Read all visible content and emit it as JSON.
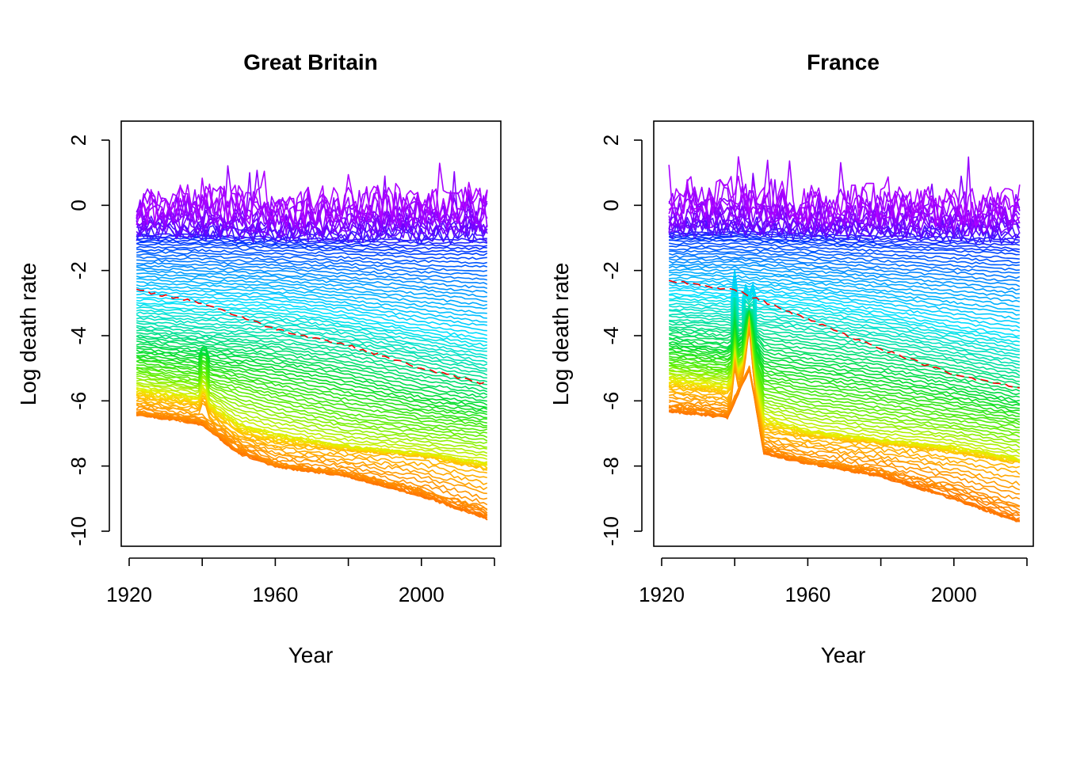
{
  "chart_data": [
    {
      "type": "line",
      "title": "Great Britain",
      "xlabel": "Year",
      "ylabel": "Log death rate",
      "xlim": [
        1920,
        2020
      ],
      "ylim": [
        -10,
        2
      ],
      "x_ticks": [
        "1920",
        "1960",
        "2000"
      ],
      "y_ticks": [
        "-10",
        "-8",
        "-6",
        "-4",
        "-2",
        "0",
        "2"
      ],
      "grid": false,
      "legend": "none",
      "x_range_data": [
        1922,
        2018
      ],
      "series_encoding": "one line per age (0 to ~110); colour runs red/orange (young ages) → yellow → green → cyan → blue → violet (oldest ages)",
      "series": [
        {
          "name": "",
          "age": 0,
          "color": "#ff0000",
          "x": [
            1922,
            1940,
            1960,
            1980,
            2000,
            2018
          ],
          "values": [
            -2.6,
            -3.0,
            -3.8,
            -4.3,
            -5.0,
            -5.5
          ]
        },
        {
          "name": "",
          "age": 5,
          "color": "#ff6a00",
          "x": [
            1922,
            1940,
            1950,
            1960,
            1980,
            2000,
            2018
          ],
          "values": [
            -6.4,
            -6.7,
            -7.6,
            -8.0,
            -8.3,
            -8.9,
            -9.6
          ]
        },
        {
          "name": "",
          "age": 12,
          "color": "#ff8c00",
          "x": [
            1922,
            1940,
            1950,
            1960,
            1980,
            2000,
            2018
          ],
          "values": [
            -6.3,
            -6.6,
            -7.4,
            -7.9,
            -8.2,
            -8.7,
            -9.3
          ]
        },
        {
          "name": "",
          "age": 20,
          "color": "#ffb000",
          "x": [
            1922,
            1940,
            1950,
            1960,
            1980,
            2000,
            2018
          ],
          "values": [
            -5.9,
            -6.2,
            -7.0,
            -7.3,
            -7.5,
            -7.7,
            -8.1
          ]
        },
        {
          "name": "",
          "age": 30,
          "color": "#ffe000",
          "x": [
            1922,
            1940,
            1950,
            1960,
            1980,
            2000,
            2018
          ],
          "values": [
            -5.6,
            -5.9,
            -6.7,
            -7.0,
            -7.4,
            -7.6,
            -7.9
          ]
        },
        {
          "name": "",
          "age": 40,
          "color": "#8cff00",
          "x": [
            1922,
            1940,
            1960,
            1980,
            2000,
            2018
          ],
          "values": [
            -5.0,
            -5.3,
            -5.9,
            -6.4,
            -6.7,
            -6.9
          ]
        },
        {
          "name": "",
          "age": 50,
          "color": "#00e020",
          "x": [
            1922,
            1940,
            1960,
            1980,
            2000,
            2018
          ],
          "values": [
            -4.4,
            -4.6,
            -4.9,
            -5.3,
            -5.8,
            -6.1
          ]
        },
        {
          "name": "",
          "age": 60,
          "color": "#00e8a0",
          "x": [
            1922,
            1940,
            1960,
            1980,
            2000,
            2018
          ],
          "values": [
            -3.7,
            -3.9,
            -4.0,
            -4.3,
            -4.7,
            -5.1
          ]
        },
        {
          "name": "",
          "age": 70,
          "color": "#00e8ff",
          "x": [
            1922,
            1940,
            1960,
            1980,
            2000,
            2018
          ],
          "values": [
            -2.9,
            -3.0,
            -3.1,
            -3.4,
            -3.8,
            -4.1
          ]
        },
        {
          "name": "",
          "age": 80,
          "color": "#0090ff",
          "x": [
            1922,
            1940,
            1960,
            1980,
            2000,
            2018
          ],
          "values": [
            -2.0,
            -2.1,
            -2.2,
            -2.4,
            -2.6,
            -2.8
          ]
        },
        {
          "name": "",
          "age": 90,
          "color": "#0030ff",
          "x": [
            1922,
            1940,
            1960,
            1980,
            2000,
            2018
          ],
          "values": [
            -1.2,
            -1.2,
            -1.3,
            -1.4,
            -1.5,
            -1.5
          ]
        },
        {
          "name": "",
          "age": 100,
          "color": "#8000ff",
          "x": [
            1922,
            1940,
            1960,
            1980,
            2000,
            2018
          ],
          "values": [
            -0.6,
            -0.6,
            -0.7,
            -0.7,
            -0.6,
            -0.6
          ]
        },
        {
          "name": "",
          "age": 108,
          "color": "#b000ff",
          "x": [
            1922,
            1940,
            1960,
            1980,
            2000,
            2018
          ],
          "values": [
            0.0,
            0.2,
            -0.1,
            0.1,
            0.0,
            0.1
          ]
        }
      ]
    },
    {
      "type": "line",
      "title": "France",
      "xlabel": "Year",
      "ylabel": "Log death rate",
      "xlim": [
        1920,
        2020
      ],
      "ylim": [
        -10,
        2
      ],
      "x_ticks": [
        "1920",
        "1960",
        "2000"
      ],
      "y_ticks": [
        "-10",
        "-8",
        "-6",
        "-4",
        "-2",
        "0",
        "2"
      ],
      "grid": false,
      "legend": "none",
      "x_range_data": [
        1922,
        2018
      ],
      "series_encoding": "one line per age (0 to ~110); colour runs red/orange (young ages) → yellow → green → cyan → blue → violet (oldest ages); war-year spike around 1940–1945",
      "series": [
        {
          "name": "",
          "age": 0,
          "color": "#ff0000",
          "x": [
            1922,
            1940,
            1960,
            1980,
            2000,
            2018
          ],
          "values": [
            -2.3,
            -2.6,
            -3.5,
            -4.4,
            -5.2,
            -5.6
          ]
        },
        {
          "name": "",
          "age": 5,
          "color": "#ff6a00",
          "x": [
            1922,
            1938,
            1944,
            1948,
            1960,
            1980,
            2000,
            2018
          ],
          "values": [
            -6.3,
            -6.5,
            -5.0,
            -7.6,
            -7.9,
            -8.3,
            -9.0,
            -9.7
          ]
        },
        {
          "name": "",
          "age": 12,
          "color": "#ff8c00",
          "x": [
            1922,
            1938,
            1944,
            1948,
            1960,
            1980,
            2000,
            2018
          ],
          "values": [
            -6.1,
            -6.3,
            -4.9,
            -7.4,
            -7.8,
            -8.1,
            -8.6,
            -9.2
          ]
        },
        {
          "name": "",
          "age": 20,
          "color": "#ffb000",
          "x": [
            1922,
            1938,
            1944,
            1948,
            1960,
            1980,
            2000,
            2018
          ],
          "values": [
            -5.6,
            -5.8,
            -4.6,
            -6.9,
            -7.1,
            -7.3,
            -7.6,
            -7.9
          ]
        },
        {
          "name": "",
          "age": 30,
          "color": "#ffe000",
          "x": [
            1922,
            1938,
            1944,
            1948,
            1960,
            1980,
            2000,
            2018
          ],
          "values": [
            -5.3,
            -5.5,
            -4.5,
            -6.5,
            -6.9,
            -7.2,
            -7.4,
            -7.8
          ]
        },
        {
          "name": "",
          "age": 40,
          "color": "#8cff00",
          "x": [
            1922,
            1938,
            1944,
            1948,
            1960,
            1980,
            2000,
            2018
          ],
          "values": [
            -4.8,
            -5.0,
            -4.3,
            -5.6,
            -5.9,
            -6.2,
            -6.5,
            -6.8
          ]
        },
        {
          "name": "",
          "age": 50,
          "color": "#00e020",
          "x": [
            1922,
            1938,
            1944,
            1948,
            1960,
            1980,
            2000,
            2018
          ],
          "values": [
            -4.2,
            -4.4,
            -3.9,
            -4.7,
            -4.9,
            -5.2,
            -5.6,
            -6.0
          ]
        },
        {
          "name": "",
          "age": 60,
          "color": "#00e8a0",
          "x": [
            1922,
            1940,
            1960,
            1980,
            2000,
            2018
          ],
          "values": [
            -3.5,
            -3.6,
            -3.9,
            -4.2,
            -4.6,
            -5.0
          ]
        },
        {
          "name": "",
          "age": 70,
          "color": "#00e8ff",
          "x": [
            1922,
            1940,
            1960,
            1980,
            2000,
            2018
          ],
          "values": [
            -2.7,
            -2.8,
            -3.0,
            -3.3,
            -3.7,
            -4.0
          ]
        },
        {
          "name": "",
          "age": 80,
          "color": "#0090ff",
          "x": [
            1922,
            1940,
            1960,
            1980,
            2000,
            2018
          ],
          "values": [
            -1.9,
            -1.9,
            -2.1,
            -2.3,
            -2.5,
            -2.7
          ]
        },
        {
          "name": "",
          "age": 90,
          "color": "#0030ff",
          "x": [
            1922,
            1940,
            1960,
            1980,
            2000,
            2018
          ],
          "values": [
            -1.1,
            -1.1,
            -1.2,
            -1.3,
            -1.4,
            -1.5
          ]
        },
        {
          "name": "",
          "age": 100,
          "color": "#8000ff",
          "x": [
            1922,
            1940,
            1960,
            1980,
            2000,
            2018
          ],
          "values": [
            -0.6,
            -0.5,
            -0.6,
            -0.6,
            -0.6,
            -0.6
          ]
        },
        {
          "name": "",
          "age": 108,
          "color": "#b000ff",
          "x": [
            1922,
            1940,
            1960,
            1980,
            2000,
            2018
          ],
          "values": [
            0.1,
            0.3,
            0.0,
            0.1,
            -0.1,
            0.0
          ]
        }
      ]
    }
  ]
}
